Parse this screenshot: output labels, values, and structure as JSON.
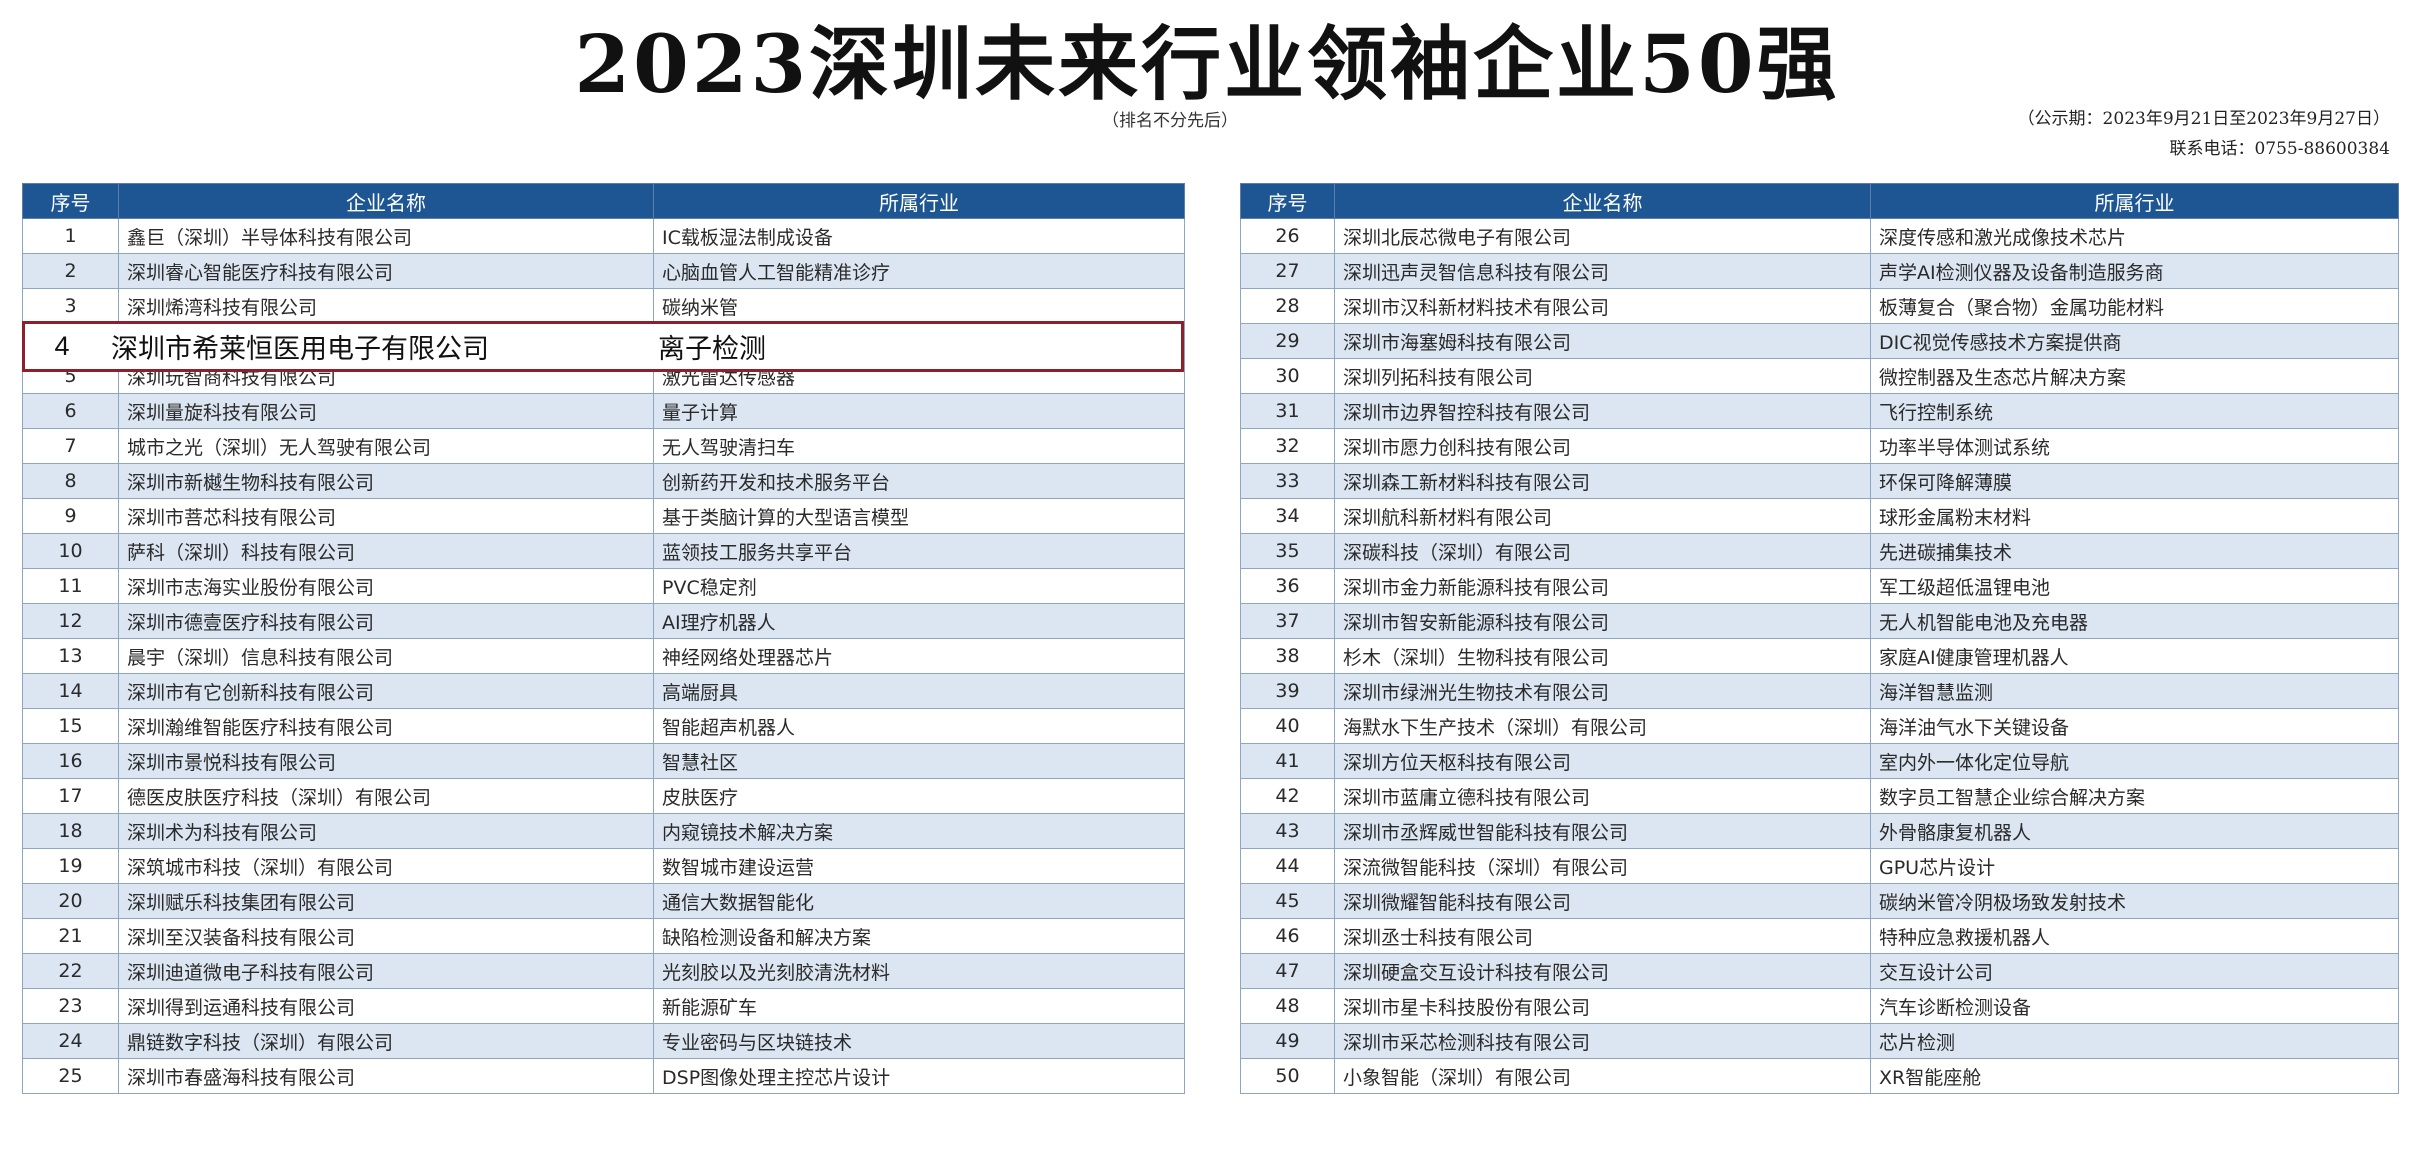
{
  "title": "2023深圳未来行业领袖企业50强",
  "subtitle": "（排名不分先后）",
  "notice": {
    "period": "（公示期：2023年9月21日至2023年9月27日）",
    "phone": "联系电话：0755-88600384"
  },
  "headers": {
    "index": "序号",
    "company": "企业名称",
    "industry": "所属行业"
  },
  "highlight": {
    "index": "4",
    "company": "深圳市希莱恒医用电子有限公司",
    "industry": "离子检测"
  },
  "left_rows": [
    {
      "index": "1",
      "company": "鑫巨（深圳）半导体科技有限公司",
      "industry": "IC载板湿法制成设备"
    },
    {
      "index": "2",
      "company": "深圳睿心智能医疗科技有限公司",
      "industry": "心脑血管人工智能精准诊疗"
    },
    {
      "index": "3",
      "company": "深圳烯湾科技有限公司",
      "industry": "碳纳米管"
    },
    {
      "index": "4",
      "company": "深圳市希莱恒医用电子有限公司",
      "industry": "离子检测"
    },
    {
      "index": "5",
      "company": "深圳玩智商科技有限公司",
      "industry": "激光雷达传感器"
    },
    {
      "index": "6",
      "company": "深圳量旋科技有限公司",
      "industry": "量子计算"
    },
    {
      "index": "7",
      "company": "城市之光（深圳）无人驾驶有限公司",
      "industry": "无人驾驶清扫车"
    },
    {
      "index": "8",
      "company": "深圳市新樾生物科技有限公司",
      "industry": "创新药开发和技术服务平台"
    },
    {
      "index": "9",
      "company": "深圳市菩芯科技有限公司",
      "industry": "基于类脑计算的大型语言模型"
    },
    {
      "index": "10",
      "company": "萨科（深圳）科技有限公司",
      "industry": "蓝领技工服务共享平台"
    },
    {
      "index": "11",
      "company": "深圳市志海实业股份有限公司",
      "industry": "PVC稳定剂"
    },
    {
      "index": "12",
      "company": "深圳市德壹医疗科技有限公司",
      "industry": "AI理疗机器人"
    },
    {
      "index": "13",
      "company": "晨宇（深圳）信息科技有限公司",
      "industry": "神经网络处理器芯片"
    },
    {
      "index": "14",
      "company": "深圳市有它创新科技有限公司",
      "industry": "高端厨具"
    },
    {
      "index": "15",
      "company": "深圳瀚维智能医疗科技有限公司",
      "industry": "智能超声机器人"
    },
    {
      "index": "16",
      "company": "深圳市景悦科技有限公司",
      "industry": "智慧社区"
    },
    {
      "index": "17",
      "company": "德医皮肤医疗科技（深圳）有限公司",
      "industry": "皮肤医疗"
    },
    {
      "index": "18",
      "company": "深圳术为科技有限公司",
      "industry": "内窥镜技术解决方案"
    },
    {
      "index": "19",
      "company": "深筑城市科技（深圳）有限公司",
      "industry": "数智城市建设运营"
    },
    {
      "index": "20",
      "company": "深圳赋乐科技集团有限公司",
      "industry": "通信大数据智能化"
    },
    {
      "index": "21",
      "company": "深圳至汉装备科技有限公司",
      "industry": "缺陷检测设备和解决方案"
    },
    {
      "index": "22",
      "company": "深圳迪道微电子科技有限公司",
      "industry": "光刻胶以及光刻胶清洗材料"
    },
    {
      "index": "23",
      "company": "深圳得到运通科技有限公司",
      "industry": "新能源矿车"
    },
    {
      "index": "24",
      "company": "鼎链数字科技（深圳）有限公司",
      "industry": "专业密码与区块链技术"
    },
    {
      "index": "25",
      "company": "深圳市春盛海科技有限公司",
      "industry": "DSP图像处理主控芯片设计"
    }
  ],
  "right_rows": [
    {
      "index": "26",
      "company": "深圳北辰芯微电子有限公司",
      "industry": "深度传感和激光成像技术芯片"
    },
    {
      "index": "27",
      "company": "深圳迅声灵智信息科技有限公司",
      "industry": "声学AI检测仪器及设备制造服务商"
    },
    {
      "index": "28",
      "company": "深圳市汉科新材料技术有限公司",
      "industry": "板薄复合（聚合物）金属功能材料"
    },
    {
      "index": "29",
      "company": "深圳市海塞姆科技有限公司",
      "industry": "DIC视觉传感技术方案提供商"
    },
    {
      "index": "30",
      "company": "深圳列拓科技有限公司",
      "industry": "微控制器及生态芯片解决方案"
    },
    {
      "index": "31",
      "company": "深圳市边界智控科技有限公司",
      "industry": "飞行控制系统"
    },
    {
      "index": "32",
      "company": "深圳市愿力创科技有限公司",
      "industry": "功率半导体测试系统"
    },
    {
      "index": "33",
      "company": "深圳森工新材料科技有限公司",
      "industry": "环保可降解薄膜"
    },
    {
      "index": "34",
      "company": "深圳航科新材料有限公司",
      "industry": "球形金属粉末材料"
    },
    {
      "index": "35",
      "company": "深碳科技（深圳）有限公司",
      "industry": "先进碳捕集技术"
    },
    {
      "index": "36",
      "company": "深圳市金力新能源科技有限公司",
      "industry": "军工级超低温锂电池"
    },
    {
      "index": "37",
      "company": "深圳市智安新能源科技有限公司",
      "industry": "无人机智能电池及充电器"
    },
    {
      "index": "38",
      "company": "杉木（深圳）生物科技有限公司",
      "industry": "家庭AI健康管理机器人"
    },
    {
      "index": "39",
      "company": "深圳市绿洲光生物技术有限公司",
      "industry": "海洋智慧监测"
    },
    {
      "index": "40",
      "company": "海默水下生产技术（深圳）有限公司",
      "industry": "海洋油气水下关键设备"
    },
    {
      "index": "41",
      "company": "深圳方位天枢科技有限公司",
      "industry": "室内外一体化定位导航"
    },
    {
      "index": "42",
      "company": "深圳市蓝庸立德科技有限公司",
      "industry": "数字员工智慧企业综合解决方案"
    },
    {
      "index": "43",
      "company": "深圳市丞辉威世智能科技有限公司",
      "industry": "外骨骼康复机器人"
    },
    {
      "index": "44",
      "company": "深流微智能科技（深圳）有限公司",
      "industry": "GPU芯片设计"
    },
    {
      "index": "45",
      "company": "深圳微耀智能科技有限公司",
      "industry": "碳纳米管冷阴极场致发射技术"
    },
    {
      "index": "46",
      "company": "深圳丞士科技有限公司",
      "industry": "特种应急救援机器人"
    },
    {
      "index": "47",
      "company": "深圳硬盒交互设计科技有限公司",
      "industry": "交互设计公司"
    },
    {
      "index": "48",
      "company": "深圳市星卡科技股份有限公司",
      "industry": "汽车诊断检测设备"
    },
    {
      "index": "49",
      "company": "深圳市采芯检测科技有限公司",
      "industry": "芯片检测"
    },
    {
      "index": "50",
      "company": "小象智能（深圳）有限公司",
      "industry": "XR智能座舱"
    }
  ],
  "colors": {
    "header_bg": "#1d5693",
    "row_alt": "#dce6f2",
    "highlight_border": "#8e1f2c"
  }
}
